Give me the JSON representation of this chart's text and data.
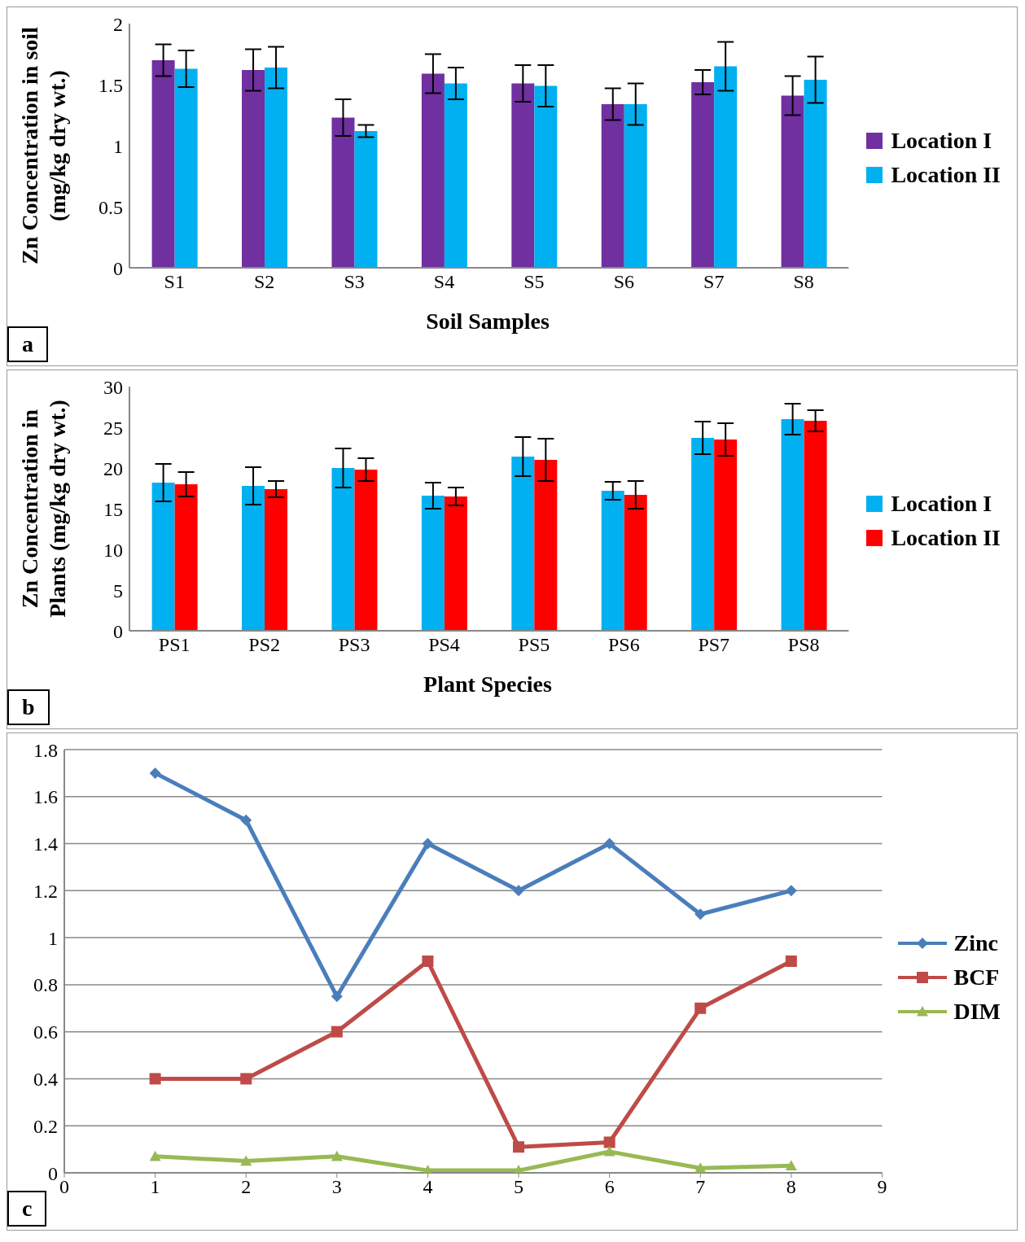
{
  "chart_data": [
    {
      "type": "bar",
      "xlabel": "Soil Samples",
      "ylabel": "Zn Concentration in soil (mg/kg dry wt.)",
      "categories": [
        "S1",
        "S2",
        "S3",
        "S4",
        "S5",
        "S6",
        "S7",
        "S8"
      ],
      "series": [
        {
          "name": "Location I",
          "color": "#7030a0",
          "values": [
            1.7,
            1.62,
            1.23,
            1.59,
            1.51,
            1.34,
            1.52,
            1.41
          ],
          "errors": [
            0.13,
            0.17,
            0.15,
            0.16,
            0.15,
            0.13,
            0.1,
            0.16
          ]
        },
        {
          "name": "Location II",
          "color": "#00b0f0",
          "values": [
            1.63,
            1.64,
            1.12,
            1.51,
            1.49,
            1.34,
            1.65,
            1.54
          ],
          "errors": [
            0.15,
            0.17,
            0.05,
            0.13,
            0.17,
            0.17,
            0.2,
            0.19
          ]
        }
      ],
      "ylim": [
        0,
        2
      ],
      "yticks": [
        0,
        0.5,
        1,
        1.5,
        2
      ],
      "legend": "right",
      "annotations": [
        "a"
      ]
    },
    {
      "type": "bar",
      "xlabel": "Plant Species",
      "ylabel": "Zn Concentration in Plants (mg/kg dry wt.)",
      "categories": [
        "PS1",
        "PS2",
        "PS3",
        "PS4",
        "PS5",
        "PS6",
        "PS7",
        "PS8"
      ],
      "series": [
        {
          "name": "Location I",
          "color": "#00b0f0",
          "values": [
            18.2,
            17.8,
            20.0,
            16.6,
            21.4,
            17.2,
            23.7,
            26.0
          ],
          "errors": [
            2.3,
            2.3,
            2.4,
            1.6,
            2.4,
            1.1,
            2.0,
            1.9
          ]
        },
        {
          "name": "Location II",
          "color": "#ff0000",
          "values": [
            18.0,
            17.4,
            19.8,
            16.5,
            21.0,
            16.7,
            23.5,
            25.8
          ],
          "errors": [
            1.5,
            1.0,
            1.4,
            1.1,
            2.6,
            1.7,
            2.0,
            1.3
          ]
        }
      ],
      "ylim": [
        0,
        30
      ],
      "yticks": [
        0,
        5,
        10,
        15,
        20,
        25,
        30
      ],
      "legend": "right",
      "annotations": [
        "b"
      ]
    },
    {
      "type": "line",
      "x": [
        1,
        2,
        3,
        4,
        5,
        6,
        7,
        8
      ],
      "series": [
        {
          "name": "Zinc",
          "color": "#4a7ebb",
          "marker": "diamond",
          "values": [
            1.7,
            1.5,
            0.75,
            1.4,
            1.2,
            1.4,
            1.1,
            1.2
          ]
        },
        {
          "name": "BCF",
          "color": "#be4b48",
          "marker": "square",
          "values": [
            0.4,
            0.4,
            0.6,
            0.9,
            0.11,
            0.13,
            0.7,
            0.9
          ]
        },
        {
          "name": "DIM",
          "color": "#98b954",
          "marker": "triangle",
          "values": [
            0.07,
            0.05,
            0.07,
            0.01,
            0.01,
            0.09,
            0.02,
            0.03
          ]
        }
      ],
      "xlim": [
        0,
        9
      ],
      "xticks": [
        0,
        1,
        2,
        3,
        4,
        5,
        6,
        7,
        8,
        9
      ],
      "ylim": [
        0,
        1.8
      ],
      "yticks": [
        0,
        0.2,
        0.4,
        0.6,
        0.8,
        1,
        1.2,
        1.4,
        1.6,
        1.8
      ],
      "grid": "y",
      "legend": "right",
      "annotations": [
        "c"
      ]
    }
  ]
}
